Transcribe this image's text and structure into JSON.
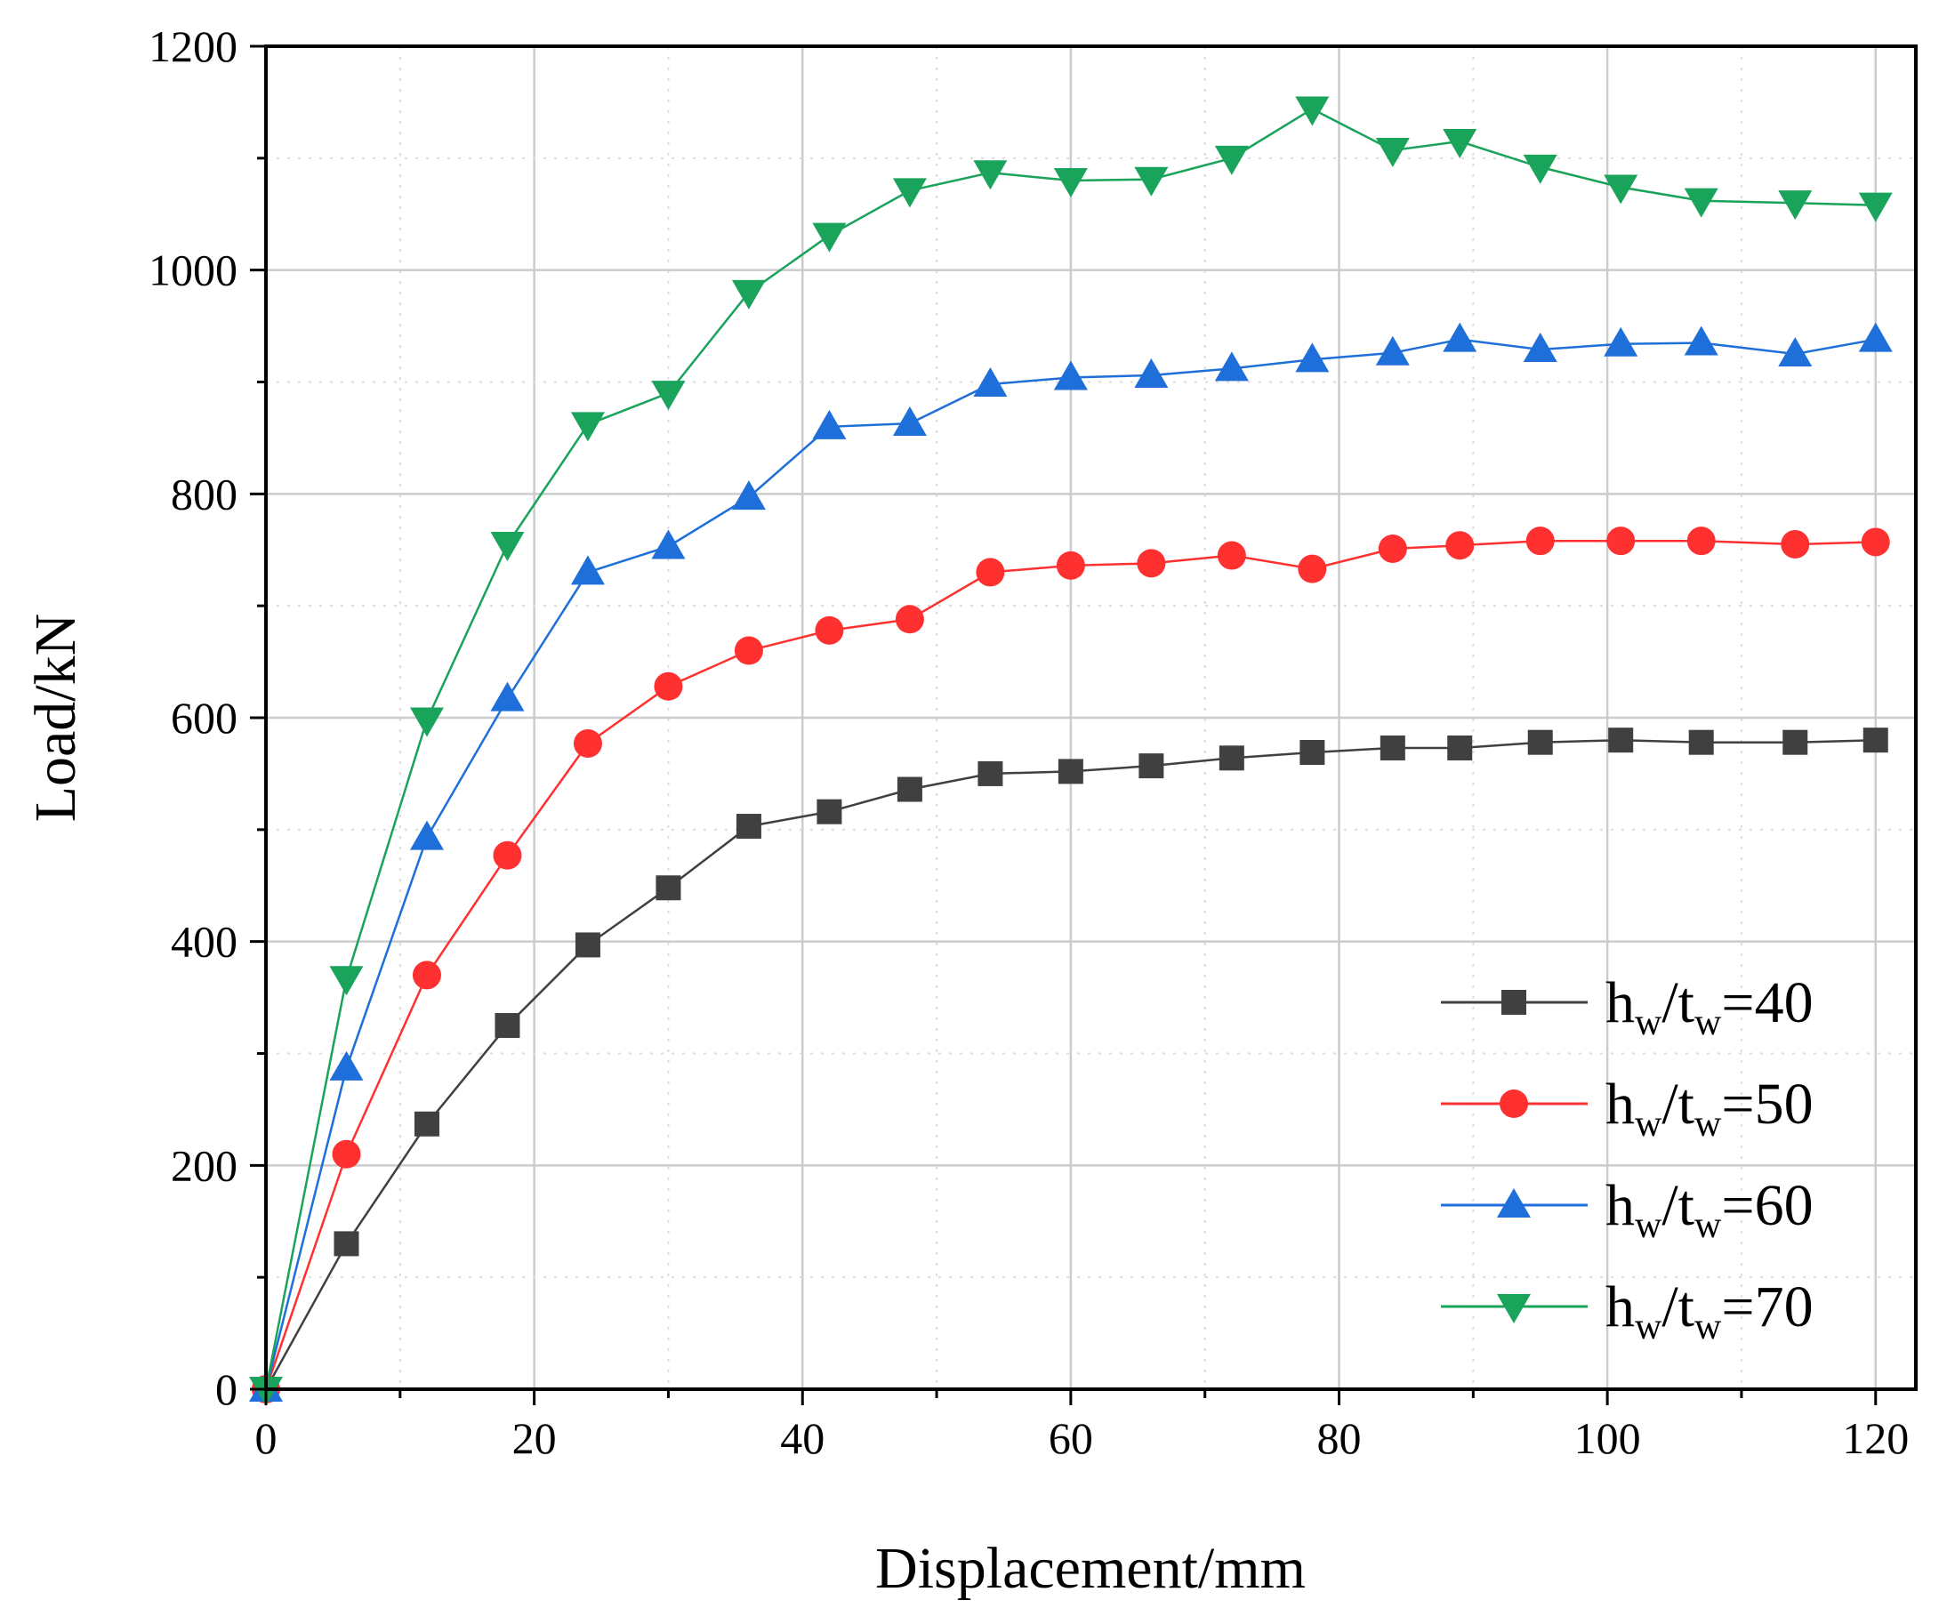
{
  "chart_data": {
    "type": "line",
    "title": "",
    "xlabel": "Displacement/mm",
    "ylabel": "Load/kN",
    "xlim": [
      0,
      123
    ],
    "ylim": [
      0,
      1200
    ],
    "x_ticks": [
      "0",
      "20",
      "40",
      "60",
      "80",
      "100",
      "120"
    ],
    "y_ticks": [
      "0",
      "200",
      "400",
      "600",
      "800",
      "1000",
      "1200"
    ],
    "grid": true,
    "legend_position": "bottom-right",
    "series": [
      {
        "name": "hw/tw=40",
        "legend_main": "h",
        "legend_sub1": "w",
        "legend_mid": "/t",
        "legend_sub2": "w",
        "legend_value": "=40",
        "color": "#404040",
        "marker": "square",
        "x": [
          0,
          6,
          12,
          18,
          24,
          30,
          36,
          42,
          48,
          54,
          60,
          66,
          72,
          78,
          84,
          89,
          95,
          101,
          107,
          114,
          120
        ],
        "y": [
          0,
          130,
          237,
          325,
          397,
          448,
          503,
          516,
          536,
          550,
          552,
          557,
          564,
          569,
          573,
          573,
          578,
          580,
          578,
          578,
          580
        ]
      },
      {
        "name": "hw/tw=50",
        "legend_main": "h",
        "legend_sub1": "w",
        "legend_mid": "/t",
        "legend_sub2": "w",
        "legend_value": "=50",
        "color": "#ff3030",
        "marker": "circle",
        "x": [
          0,
          6,
          12,
          18,
          24,
          30,
          36,
          42,
          48,
          54,
          60,
          66,
          72,
          78,
          84,
          89,
          95,
          101,
          107,
          114,
          120
        ],
        "y": [
          0,
          210,
          370,
          477,
          577,
          628,
          660,
          678,
          688,
          730,
          736,
          738,
          745,
          733,
          751,
          754,
          758,
          758,
          758,
          755,
          757
        ]
      },
      {
        "name": "hw/tw=60",
        "legend_main": "h",
        "legend_sub1": "w",
        "legend_mid": "/t",
        "legend_sub2": "w",
        "legend_value": "=60",
        "color": "#1e6fd9",
        "marker": "triangle-up",
        "x": [
          0,
          6,
          12,
          18,
          24,
          30,
          36,
          42,
          48,
          54,
          60,
          66,
          72,
          78,
          84,
          89,
          95,
          101,
          107,
          114,
          120
        ],
        "y": [
          0,
          287,
          493,
          617,
          730,
          753,
          797,
          860,
          863,
          898,
          904,
          906,
          912,
          920,
          926,
          938,
          929,
          934,
          935,
          925,
          938
        ]
      },
      {
        "name": "hw/tw=70",
        "legend_main": "h",
        "legend_sub1": "w",
        "legend_mid": "/t",
        "legend_sub2": "w",
        "legend_value": "=70",
        "color": "#1aa35a",
        "marker": "triangle-down",
        "x": [
          0,
          6,
          12,
          18,
          24,
          30,
          36,
          42,
          48,
          54,
          60,
          66,
          72,
          78,
          84,
          89,
          95,
          101,
          107,
          114,
          120
        ],
        "y": [
          0,
          367,
          598,
          755,
          862,
          890,
          980,
          1031,
          1071,
          1087,
          1080,
          1081,
          1100,
          1144,
          1107,
          1115,
          1092,
          1074,
          1062,
          1060,
          1058
        ]
      }
    ]
  }
}
